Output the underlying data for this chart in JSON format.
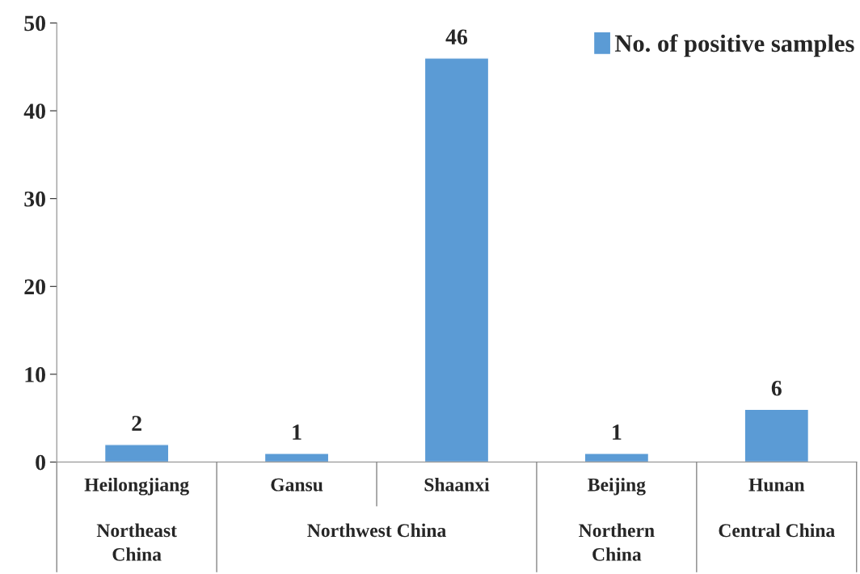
{
  "chart_data": {
    "type": "bar",
    "categories": [
      "Heilongjiang",
      "Gansu",
      "Shaanxi",
      "Beijing",
      "Hunan"
    ],
    "series": [
      {
        "name": "No. of positive samples",
        "color": "#5b9bd5",
        "values": [
          2,
          1,
          46,
          1,
          6
        ]
      }
    ],
    "ylim": [
      0,
      50
    ],
    "yticks": [
      0,
      10,
      20,
      30,
      40,
      50
    ],
    "data_labels": true,
    "legend": "top right",
    "grid": false,
    "annotations": [
      "Northeast\nChina",
      "Northwest China",
      null,
      "Northern\nChina",
      "Central China"
    ]
  }
}
